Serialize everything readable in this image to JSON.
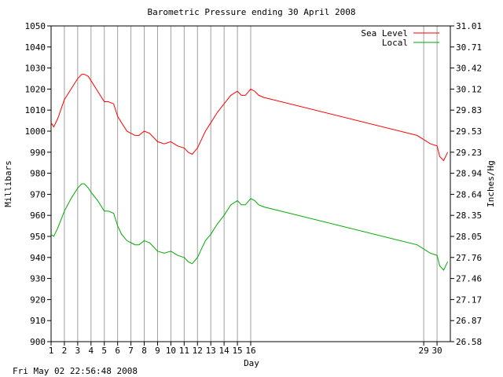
{
  "chart_data": {
    "type": "line",
    "title": "Barometric Pressure ending 30 April 2008",
    "xlabel": "Day",
    "ylabel": "Millibars",
    "y2label": "Inches/Hg",
    "footer_timestamp": "Fri May 02 22:56:48 2008",
    "xlim": [
      1,
      31
    ],
    "ylim": [
      900,
      1050
    ],
    "y_ticks": [
      900,
      910,
      920,
      930,
      940,
      950,
      960,
      970,
      980,
      990,
      1000,
      1010,
      1020,
      1030,
      1040,
      1050
    ],
    "y2_tick_labels": [
      "26.58",
      "26.87",
      "27.17",
      "27.46",
      "27.76",
      "28.05",
      "28.35",
      "28.64",
      "28.94",
      "29.23",
      "29.53",
      "29.83",
      "30.12",
      "30.42",
      "30.71",
      "31.01"
    ],
    "x_ticks": [
      1,
      2,
      3,
      4,
      5,
      6,
      7,
      8,
      9,
      10,
      11,
      12,
      13,
      14,
      15,
      16,
      29,
      30
    ],
    "grid": "vertical lines at each x tick",
    "legend": "top-right",
    "series": [
      {
        "name": "Sea Level",
        "color": "#ff0000",
        "x": [
          1,
          1.2,
          1.5,
          2,
          2.5,
          3,
          3.3,
          3.5,
          3.8,
          4,
          4.5,
          5,
          5.3,
          5.7,
          6,
          6.3,
          6.7,
          7,
          7.3,
          7.6,
          8,
          8.4,
          8.7,
          9,
          9.5,
          10,
          10.5,
          11,
          11.3,
          11.6,
          12,
          12.3,
          12.6,
          13,
          13.5,
          14,
          14.5,
          15,
          15.3,
          15.6,
          16,
          16.3,
          16.6,
          17,
          28.5,
          29.5,
          30,
          30.2,
          30.5,
          30.8
        ],
        "y": [
          1004,
          1002,
          1006,
          1015,
          1020,
          1025,
          1027,
          1027,
          1026,
          1024,
          1019,
          1014,
          1014,
          1013,
          1007,
          1004,
          1000,
          999,
          998,
          998,
          1000,
          999,
          997,
          995,
          994,
          995,
          993,
          992,
          990,
          989,
          992,
          996,
          1000,
          1004,
          1009,
          1013,
          1017,
          1019,
          1017,
          1017,
          1020,
          1019,
          1017,
          1016,
          998,
          994,
          993,
          988,
          986,
          990
        ]
      },
      {
        "name": "Local",
        "color": "#00aa00",
        "x": [
          1,
          1.2,
          1.5,
          2,
          2.5,
          3,
          3.3,
          3.5,
          3.8,
          4,
          4.5,
          5,
          5.3,
          5.7,
          6,
          6.3,
          6.7,
          7,
          7.3,
          7.6,
          8,
          8.4,
          8.7,
          9,
          9.5,
          10,
          10.5,
          11,
          11.3,
          11.6,
          12,
          12.3,
          12.6,
          13,
          13.5,
          14,
          14.5,
          15,
          15.3,
          15.6,
          16,
          16.3,
          16.6,
          17,
          28.5,
          29.5,
          30,
          30.2,
          30.5,
          30.8
        ],
        "y": [
          951,
          950,
          954,
          962,
          968,
          973,
          975,
          975,
          973,
          971,
          967,
          962,
          962,
          961,
          955,
          951,
          948,
          947,
          946,
          946,
          948,
          947,
          945,
          943,
          942,
          943,
          941,
          940,
          938,
          937,
          940,
          944,
          948,
          951,
          956,
          960,
          965,
          967,
          965,
          965,
          968,
          967,
          965,
          964,
          946,
          942,
          941,
          936,
          934,
          938
        ]
      }
    ]
  }
}
